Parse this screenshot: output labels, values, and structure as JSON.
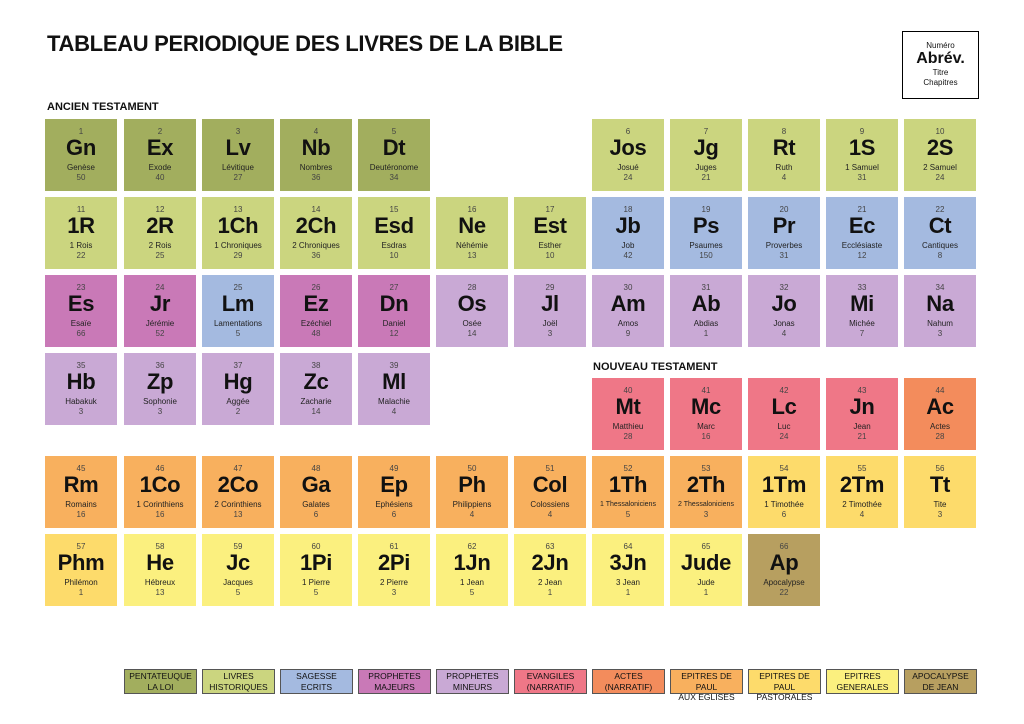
{
  "title": "TABLEAU PERIODIQUE DES LIVRES DE LA BIBLE",
  "sections": {
    "old": "ANCIEN TESTAMENT",
    "new": "NOUVEAU TESTAMENT"
  },
  "key": {
    "number": "Numéro",
    "abbr": "Abrév.",
    "title": "Titre",
    "chapters": "Chapitres"
  },
  "colors": {
    "pentateuque": "#a2ae5e",
    "historiques": "#cbd57f",
    "sagesse": "#a4bae0",
    "prophetes_majeurs": "#c979b7",
    "prophetes_mineurs": "#c9a9d5",
    "evangiles": "#ef7787",
    "actes": "#f38c5c",
    "epitres_paul": "#f8b05e",
    "epitres_pastorales": "#fddb6b",
    "epitres_generales": "#fbf07f",
    "apocalypse": "#b79f60"
  },
  "books": [
    {
      "n": "1",
      "a": "Gn",
      "t": "Genèse",
      "c": "50",
      "g": "pentateuque",
      "r": 0,
      "col": 0
    },
    {
      "n": "2",
      "a": "Ex",
      "t": "Exode",
      "c": "40",
      "g": "pentateuque",
      "r": 0,
      "col": 1
    },
    {
      "n": "3",
      "a": "Lv",
      "t": "Lévitique",
      "c": "27",
      "g": "pentateuque",
      "r": 0,
      "col": 2
    },
    {
      "n": "4",
      "a": "Nb",
      "t": "Nombres",
      "c": "36",
      "g": "pentateuque",
      "r": 0,
      "col": 3
    },
    {
      "n": "5",
      "a": "Dt",
      "t": "Deutéronome",
      "c": "34",
      "g": "pentateuque",
      "r": 0,
      "col": 4
    },
    {
      "n": "6",
      "a": "Jos",
      "t": "Josué",
      "c": "24",
      "g": "historiques",
      "r": 0,
      "col": 7
    },
    {
      "n": "7",
      "a": "Jg",
      "t": "Juges",
      "c": "21",
      "g": "historiques",
      "r": 0,
      "col": 8
    },
    {
      "n": "8",
      "a": "Rt",
      "t": "Ruth",
      "c": "4",
      "g": "historiques",
      "r": 0,
      "col": 9
    },
    {
      "n": "9",
      "a": "1S",
      "t": "1 Samuel",
      "c": "31",
      "g": "historiques",
      "r": 0,
      "col": 10
    },
    {
      "n": "10",
      "a": "2S",
      "t": "2 Samuel",
      "c": "24",
      "g": "historiques",
      "r": 0,
      "col": 11
    },
    {
      "n": "11",
      "a": "1R",
      "t": "1 Rois",
      "c": "22",
      "g": "historiques",
      "r": 1,
      "col": 0
    },
    {
      "n": "12",
      "a": "2R",
      "t": "2 Rois",
      "c": "25",
      "g": "historiques",
      "r": 1,
      "col": 1
    },
    {
      "n": "13",
      "a": "1Ch",
      "t": "1 Chroniques",
      "c": "29",
      "g": "historiques",
      "r": 1,
      "col": 2
    },
    {
      "n": "14",
      "a": "2Ch",
      "t": "2 Chroniques",
      "c": "36",
      "g": "historiques",
      "r": 1,
      "col": 3
    },
    {
      "n": "15",
      "a": "Esd",
      "t": "Esdras",
      "c": "10",
      "g": "historiques",
      "r": 1,
      "col": 4
    },
    {
      "n": "16",
      "a": "Ne",
      "t": "Néhémie",
      "c": "13",
      "g": "historiques",
      "r": 1,
      "col": 5
    },
    {
      "n": "17",
      "a": "Est",
      "t": "Esther",
      "c": "10",
      "g": "historiques",
      "r": 1,
      "col": 6
    },
    {
      "n": "18",
      "a": "Jb",
      "t": "Job",
      "c": "42",
      "g": "sagesse",
      "r": 1,
      "col": 7
    },
    {
      "n": "19",
      "a": "Ps",
      "t": "Psaumes",
      "c": "150",
      "g": "sagesse",
      "r": 1,
      "col": 8
    },
    {
      "n": "20",
      "a": "Pr",
      "t": "Proverbes",
      "c": "31",
      "g": "sagesse",
      "r": 1,
      "col": 9
    },
    {
      "n": "21",
      "a": "Ec",
      "t": "Ecclésiaste",
      "c": "12",
      "g": "sagesse",
      "r": 1,
      "col": 10
    },
    {
      "n": "22",
      "a": "Ct",
      "t": "Cantiques",
      "c": "8",
      "g": "sagesse",
      "r": 1,
      "col": 11
    },
    {
      "n": "23",
      "a": "Es",
      "t": "Esaïe",
      "c": "66",
      "g": "prophetes_majeurs",
      "r": 2,
      "col": 0
    },
    {
      "n": "24",
      "a": "Jr",
      "t": "Jérémie",
      "c": "52",
      "g": "prophetes_majeurs",
      "r": 2,
      "col": 1
    },
    {
      "n": "25",
      "a": "Lm",
      "t": "Lamentations",
      "c": "5",
      "g": "sagesse",
      "r": 2,
      "col": 2
    },
    {
      "n": "26",
      "a": "Ez",
      "t": "Ezéchiel",
      "c": "48",
      "g": "prophetes_majeurs",
      "r": 2,
      "col": 3
    },
    {
      "n": "27",
      "a": "Dn",
      "t": "Daniel",
      "c": "12",
      "g": "prophetes_majeurs",
      "r": 2,
      "col": 4
    },
    {
      "n": "28",
      "a": "Os",
      "t": "Osée",
      "c": "14",
      "g": "prophetes_mineurs",
      "r": 2,
      "col": 5
    },
    {
      "n": "29",
      "a": "Jl",
      "t": "Joël",
      "c": "3",
      "g": "prophetes_mineurs",
      "r": 2,
      "col": 6
    },
    {
      "n": "30",
      "a": "Am",
      "t": "Amos",
      "c": "9",
      "g": "prophetes_mineurs",
      "r": 2,
      "col": 7
    },
    {
      "n": "31",
      "a": "Ab",
      "t": "Abdias",
      "c": "1",
      "g": "prophetes_mineurs",
      "r": 2,
      "col": 8
    },
    {
      "n": "32",
      "a": "Jo",
      "t": "Jonas",
      "c": "4",
      "g": "prophetes_mineurs",
      "r": 2,
      "col": 9
    },
    {
      "n": "33",
      "a": "Mi",
      "t": "Michée",
      "c": "7",
      "g": "prophetes_mineurs",
      "r": 2,
      "col": 10
    },
    {
      "n": "34",
      "a": "Na",
      "t": "Nahum",
      "c": "3",
      "g": "prophetes_mineurs",
      "r": 2,
      "col": 11
    },
    {
      "n": "35",
      "a": "Hb",
      "t": "Habakuk",
      "c": "3",
      "g": "prophetes_mineurs",
      "r": 3,
      "col": 0
    },
    {
      "n": "36",
      "a": "Zp",
      "t": "Sophonie",
      "c": "3",
      "g": "prophetes_mineurs",
      "r": 3,
      "col": 1
    },
    {
      "n": "37",
      "a": "Hg",
      "t": "Aggée",
      "c": "2",
      "g": "prophetes_mineurs",
      "r": 3,
      "col": 2
    },
    {
      "n": "38",
      "a": "Zc",
      "t": "Zacharie",
      "c": "14",
      "g": "prophetes_mineurs",
      "r": 3,
      "col": 3
    },
    {
      "n": "39",
      "a": "Ml",
      "t": "Malachie",
      "c": "4",
      "g": "prophetes_mineurs",
      "r": 3,
      "col": 4
    },
    {
      "n": "40",
      "a": "Mt",
      "t": "Matthieu",
      "c": "28",
      "g": "evangiles",
      "r": 4,
      "col": 7
    },
    {
      "n": "41",
      "a": "Mc",
      "t": "Marc",
      "c": "16",
      "g": "evangiles",
      "r": 4,
      "col": 8
    },
    {
      "n": "42",
      "a": "Lc",
      "t": "Luc",
      "c": "24",
      "g": "evangiles",
      "r": 4,
      "col": 9
    },
    {
      "n": "43",
      "a": "Jn",
      "t": "Jean",
      "c": "21",
      "g": "evangiles",
      "r": 4,
      "col": 10
    },
    {
      "n": "44",
      "a": "Ac",
      "t": "Actes",
      "c": "28",
      "g": "actes",
      "r": 4,
      "col": 11
    },
    {
      "n": "45",
      "a": "Rm",
      "t": "Romains",
      "c": "16",
      "g": "epitres_paul",
      "r": 5,
      "col": 0
    },
    {
      "n": "46",
      "a": "1Co",
      "t": "1 Corinthiens",
      "c": "16",
      "g": "epitres_paul",
      "r": 5,
      "col": 1
    },
    {
      "n": "47",
      "a": "2Co",
      "t": "2 Corinthiens",
      "c": "13",
      "g": "epitres_paul",
      "r": 5,
      "col": 2
    },
    {
      "n": "48",
      "a": "Ga",
      "t": "Galates",
      "c": "6",
      "g": "epitres_paul",
      "r": 5,
      "col": 3
    },
    {
      "n": "49",
      "a": "Ep",
      "t": "Ephésiens",
      "c": "6",
      "g": "epitres_paul",
      "r": 5,
      "col": 4
    },
    {
      "n": "50",
      "a": "Ph",
      "t": "Philippiens",
      "c": "4",
      "g": "epitres_paul",
      "r": 5,
      "col": 5
    },
    {
      "n": "51",
      "a": "Col",
      "t": "Colossiens",
      "c": "4",
      "g": "epitres_paul",
      "r": 5,
      "col": 6
    },
    {
      "n": "52",
      "a": "1Th",
      "t": "1 Thessaloniciens",
      "c": "5",
      "g": "epitres_paul",
      "r": 5,
      "col": 7
    },
    {
      "n": "53",
      "a": "2Th",
      "t": "2 Thessaloniciens",
      "c": "3",
      "g": "epitres_paul",
      "r": 5,
      "col": 8
    },
    {
      "n": "54",
      "a": "1Tm",
      "t": "1 Timothée",
      "c": "6",
      "g": "epitres_pastorales",
      "r": 5,
      "col": 9
    },
    {
      "n": "55",
      "a": "2Tm",
      "t": "2 Timothée",
      "c": "4",
      "g": "epitres_pastorales",
      "r": 5,
      "col": 10
    },
    {
      "n": "56",
      "a": "Tt",
      "t": "Tite",
      "c": "3",
      "g": "epitres_pastorales",
      "r": 5,
      "col": 11
    },
    {
      "n": "57",
      "a": "Phm",
      "t": "Philémon",
      "c": "1",
      "g": "epitres_pastorales",
      "r": 6,
      "col": 0
    },
    {
      "n": "58",
      "a": "He",
      "t": "Hébreux",
      "c": "13",
      "g": "epitres_generales",
      "r": 6,
      "col": 1
    },
    {
      "n": "59",
      "a": "Jc",
      "t": "Jacques",
      "c": "5",
      "g": "epitres_generales",
      "r": 6,
      "col": 2
    },
    {
      "n": "60",
      "a": "1Pi",
      "t": "1 Pierre",
      "c": "5",
      "g": "epitres_generales",
      "r": 6,
      "col": 3
    },
    {
      "n": "61",
      "a": "2Pi",
      "t": "2 Pierre",
      "c": "3",
      "g": "epitres_generales",
      "r": 6,
      "col": 4
    },
    {
      "n": "62",
      "a": "1Jn",
      "t": "1 Jean",
      "c": "5",
      "g": "epitres_generales",
      "r": 6,
      "col": 5
    },
    {
      "n": "63",
      "a": "2Jn",
      "t": "2 Jean",
      "c": "1",
      "g": "epitres_generales",
      "r": 6,
      "col": 6
    },
    {
      "n": "64",
      "a": "3Jn",
      "t": "3 Jean",
      "c": "1",
      "g": "epitres_generales",
      "r": 6,
      "col": 7
    },
    {
      "n": "65",
      "a": "Jude",
      "t": "Jude",
      "c": "1",
      "g": "epitres_generales",
      "r": 6,
      "col": 8
    },
    {
      "n": "66",
      "a": "Ap",
      "t": "Apocalypse",
      "c": "22",
      "g": "apocalypse",
      "r": 6,
      "col": 9
    }
  ],
  "legend": [
    {
      "line1": "PENTATEUQUE",
      "line2": "LA LOI",
      "g": "pentateuque"
    },
    {
      "line1": "LIVRES",
      "line2": "HISTORIQUES",
      "g": "historiques"
    },
    {
      "line1": "SAGESSE",
      "line2": "ECRITS",
      "g": "sagesse"
    },
    {
      "line1": "PROPHETES",
      "line2": "MAJEURS",
      "g": "prophetes_majeurs"
    },
    {
      "line1": "PROPHETES",
      "line2": "MINEURS",
      "g": "prophetes_mineurs"
    },
    {
      "line1": "EVANGILES",
      "line2": "(NARRATIF)",
      "g": "evangiles"
    },
    {
      "line1": "ACTES",
      "line2": "(NARRATIF)",
      "g": "actes"
    },
    {
      "line1": "EPITRES DE PAUL",
      "line2": "AUX EGLISES",
      "g": "epitres_paul"
    },
    {
      "line1": "EPITRES DE PAUL",
      "line2": "PASTORALES",
      "g": "epitres_pastorales"
    },
    {
      "line1": "EPITRES",
      "line2": "GENERALES",
      "g": "epitres_generales"
    },
    {
      "line1": "APOCALYPSE",
      "line2": "DE JEAN",
      "g": "apocalypse"
    }
  ]
}
